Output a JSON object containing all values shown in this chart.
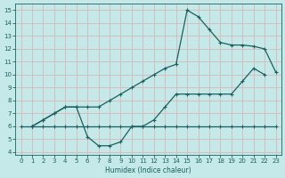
{
  "xlabel": "Humidex (Indice chaleur)",
  "xlim": [
    -0.5,
    23.5
  ],
  "ylim": [
    3.8,
    15.5
  ],
  "xticks": [
    0,
    1,
    2,
    3,
    4,
    5,
    6,
    7,
    8,
    9,
    10,
    11,
    12,
    13,
    14,
    15,
    16,
    17,
    18,
    19,
    20,
    21,
    22,
    23
  ],
  "yticks": [
    4,
    5,
    6,
    7,
    8,
    9,
    10,
    11,
    12,
    13,
    14,
    15
  ],
  "bg_color": "#c5e8e8",
  "line_color": "#1a6060",
  "grid_color": "#b0d8d8",
  "line1_x": [
    0,
    1,
    2,
    3,
    4,
    5,
    6,
    7,
    8,
    9,
    10,
    11,
    12,
    13,
    14,
    15,
    16,
    17,
    18,
    19,
    20,
    21,
    22,
    23
  ],
  "line1_y": [
    6,
    6,
    6,
    6,
    6,
    6,
    6,
    6,
    6,
    6,
    6,
    6,
    6,
    6,
    6,
    6,
    6,
    6,
    6,
    6,
    6,
    6,
    6,
    6
  ],
  "line2_x": [
    1,
    2,
    3,
    4,
    5,
    6,
    7,
    8,
    9,
    10,
    11,
    12,
    13,
    14,
    15,
    16,
    17,
    18,
    19,
    20,
    21,
    22
  ],
  "line2_y": [
    6.0,
    6.5,
    7.0,
    7.5,
    7.5,
    5.2,
    4.5,
    4.5,
    4.8,
    6.0,
    6.0,
    6.5,
    7.5,
    8.5,
    8.5,
    8.5,
    8.5,
    8.5,
    8.5,
    9.5,
    10.5,
    10.0
  ],
  "line3_x": [
    1,
    2,
    3,
    4,
    5,
    6,
    7,
    8,
    9,
    10,
    11,
    12,
    13,
    14,
    15,
    16,
    17,
    18,
    19,
    20,
    21,
    22,
    23
  ],
  "line3_y": [
    6.0,
    6.5,
    7.0,
    7.5,
    7.5,
    7.5,
    7.5,
    8.0,
    8.5,
    9.0,
    9.5,
    10.0,
    10.5,
    10.8,
    15.0,
    14.5,
    13.5,
    12.5,
    12.3,
    12.3,
    12.2,
    12.0,
    10.2
  ]
}
